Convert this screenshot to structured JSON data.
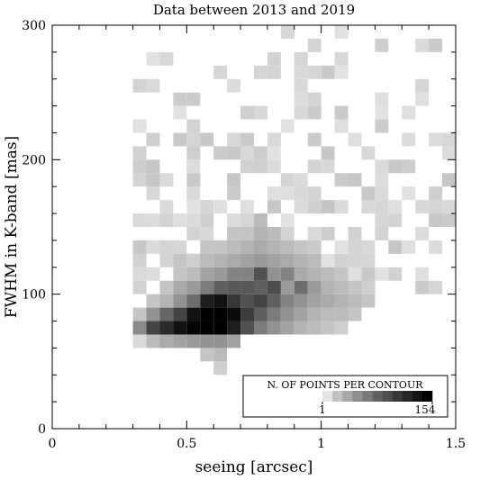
{
  "chart_data": {
    "type": "heatmap",
    "title": "Data between 2013 and 2019",
    "xlabel": "seeing [arcsec]",
    "ylabel": "FWHM in K-band [mas]",
    "xlim": [
      0,
      1.5
    ],
    "ylim": [
      0,
      300
    ],
    "x_ticks": [
      {
        "value": 0,
        "label": "0"
      },
      {
        "value": 0.5,
        "label": "0.5"
      },
      {
        "value": 1,
        "label": "1"
      },
      {
        "value": 1.5,
        "label": "1.5"
      }
    ],
    "y_ticks": [
      {
        "value": 0,
        "label": "0"
      },
      {
        "value": 100,
        "label": "100"
      },
      {
        "value": 200,
        "label": "200"
      },
      {
        "value": 300,
        "label": "300"
      }
    ],
    "bin_width_x": 0.05,
    "bin_width_y": 10,
    "bins": [
      {
        "x": 0.3,
        "y": 60,
        "count": 5
      },
      {
        "x": 0.3,
        "y": 70,
        "count": 50
      },
      {
        "x": 0.3,
        "y": 80,
        "count": 15
      },
      {
        "x": 0.35,
        "y": 60,
        "count": 20
      },
      {
        "x": 0.35,
        "y": 70,
        "count": 100
      },
      {
        "x": 0.35,
        "y": 80,
        "count": 45
      },
      {
        "x": 0.35,
        "y": 90,
        "count": 15
      },
      {
        "x": 0.4,
        "y": 60,
        "count": 30
      },
      {
        "x": 0.4,
        "y": 70,
        "count": 120
      },
      {
        "x": 0.4,
        "y": 80,
        "count": 75
      },
      {
        "x": 0.4,
        "y": 90,
        "count": 25
      },
      {
        "x": 0.4,
        "y": 100,
        "count": 15
      },
      {
        "x": 0.45,
        "y": 60,
        "count": 35
      },
      {
        "x": 0.45,
        "y": 70,
        "count": 140
      },
      {
        "x": 0.45,
        "y": 80,
        "count": 100
      },
      {
        "x": 0.45,
        "y": 90,
        "count": 45
      },
      {
        "x": 0.45,
        "y": 100,
        "count": 30
      },
      {
        "x": 0.45,
        "y": 110,
        "count": 15
      },
      {
        "x": 0.5,
        "y": 60,
        "count": 40
      },
      {
        "x": 0.5,
        "y": 70,
        "count": 150
      },
      {
        "x": 0.5,
        "y": 80,
        "count": 140
      },
      {
        "x": 0.5,
        "y": 90,
        "count": 70
      },
      {
        "x": 0.5,
        "y": 100,
        "count": 40
      },
      {
        "x": 0.5,
        "y": 110,
        "count": 20
      },
      {
        "x": 0.5,
        "y": 120,
        "count": 10
      },
      {
        "x": 0.55,
        "y": 50,
        "count": 15
      },
      {
        "x": 0.55,
        "y": 60,
        "count": 45
      },
      {
        "x": 0.55,
        "y": 70,
        "count": 154
      },
      {
        "x": 0.55,
        "y": 80,
        "count": 154
      },
      {
        "x": 0.55,
        "y": 90,
        "count": 130
      },
      {
        "x": 0.55,
        "y": 100,
        "count": 60
      },
      {
        "x": 0.55,
        "y": 110,
        "count": 35
      },
      {
        "x": 0.55,
        "y": 120,
        "count": 20
      },
      {
        "x": 0.55,
        "y": 130,
        "count": 15
      },
      {
        "x": 0.6,
        "y": 40,
        "count": 10
      },
      {
        "x": 0.6,
        "y": 50,
        "count": 20
      },
      {
        "x": 0.6,
        "y": 60,
        "count": 45
      },
      {
        "x": 0.6,
        "y": 70,
        "count": 154
      },
      {
        "x": 0.6,
        "y": 80,
        "count": 154
      },
      {
        "x": 0.6,
        "y": 90,
        "count": 140
      },
      {
        "x": 0.6,
        "y": 100,
        "count": 80
      },
      {
        "x": 0.6,
        "y": 110,
        "count": 40
      },
      {
        "x": 0.6,
        "y": 120,
        "count": 25
      },
      {
        "x": 0.6,
        "y": 130,
        "count": 15
      },
      {
        "x": 0.65,
        "y": 60,
        "count": 35
      },
      {
        "x": 0.65,
        "y": 70,
        "count": 130
      },
      {
        "x": 0.65,
        "y": 80,
        "count": 145
      },
      {
        "x": 0.65,
        "y": 90,
        "count": 110
      },
      {
        "x": 0.65,
        "y": 100,
        "count": 85
      },
      {
        "x": 0.65,
        "y": 110,
        "count": 55
      },
      {
        "x": 0.65,
        "y": 120,
        "count": 30
      },
      {
        "x": 0.65,
        "y": 130,
        "count": 20
      },
      {
        "x": 0.65,
        "y": 140,
        "count": 15
      },
      {
        "x": 0.7,
        "y": 70,
        "count": 90
      },
      {
        "x": 0.7,
        "y": 80,
        "count": 105
      },
      {
        "x": 0.7,
        "y": 90,
        "count": 90
      },
      {
        "x": 0.7,
        "y": 100,
        "count": 85
      },
      {
        "x": 0.7,
        "y": 110,
        "count": 55
      },
      {
        "x": 0.7,
        "y": 120,
        "count": 35
      },
      {
        "x": 0.7,
        "y": 130,
        "count": 25
      },
      {
        "x": 0.7,
        "y": 140,
        "count": 15
      },
      {
        "x": 0.75,
        "y": 70,
        "count": 60
      },
      {
        "x": 0.75,
        "y": 80,
        "count": 80
      },
      {
        "x": 0.75,
        "y": 90,
        "count": 100
      },
      {
        "x": 0.75,
        "y": 100,
        "count": 80
      },
      {
        "x": 0.75,
        "y": 110,
        "count": 90
      },
      {
        "x": 0.75,
        "y": 120,
        "count": 40
      },
      {
        "x": 0.75,
        "y": 130,
        "count": 30
      },
      {
        "x": 0.75,
        "y": 140,
        "count": 25
      },
      {
        "x": 0.75,
        "y": 150,
        "count": 20
      },
      {
        "x": 0.8,
        "y": 70,
        "count": 45
      },
      {
        "x": 0.8,
        "y": 80,
        "count": 60
      },
      {
        "x": 0.8,
        "y": 90,
        "count": 80
      },
      {
        "x": 0.8,
        "y": 100,
        "count": 95
      },
      {
        "x": 0.8,
        "y": 110,
        "count": 45
      },
      {
        "x": 0.8,
        "y": 120,
        "count": 35
      },
      {
        "x": 0.8,
        "y": 130,
        "count": 25
      },
      {
        "x": 0.8,
        "y": 140,
        "count": 20
      },
      {
        "x": 0.85,
        "y": 70,
        "count": 35
      },
      {
        "x": 0.85,
        "y": 80,
        "count": 45
      },
      {
        "x": 0.85,
        "y": 90,
        "count": 55
      },
      {
        "x": 0.85,
        "y": 100,
        "count": 40
      },
      {
        "x": 0.85,
        "y": 110,
        "count": 55
      },
      {
        "x": 0.85,
        "y": 120,
        "count": 30
      },
      {
        "x": 0.85,
        "y": 130,
        "count": 20
      },
      {
        "x": 0.9,
        "y": 70,
        "count": 25
      },
      {
        "x": 0.9,
        "y": 80,
        "count": 35
      },
      {
        "x": 0.9,
        "y": 90,
        "count": 45
      },
      {
        "x": 0.9,
        "y": 100,
        "count": 70
      },
      {
        "x": 0.9,
        "y": 110,
        "count": 30
      },
      {
        "x": 0.9,
        "y": 120,
        "count": 25
      },
      {
        "x": 0.9,
        "y": 130,
        "count": 15
      },
      {
        "x": 0.95,
        "y": 70,
        "count": 20
      },
      {
        "x": 0.95,
        "y": 80,
        "count": 25
      },
      {
        "x": 0.95,
        "y": 90,
        "count": 35
      },
      {
        "x": 0.95,
        "y": 100,
        "count": 40
      },
      {
        "x": 0.95,
        "y": 110,
        "count": 25
      },
      {
        "x": 0.95,
        "y": 120,
        "count": 20
      },
      {
        "x": 1.0,
        "y": 70,
        "count": 15
      },
      {
        "x": 1.0,
        "y": 80,
        "count": 20
      },
      {
        "x": 1.0,
        "y": 90,
        "count": 30
      },
      {
        "x": 1.0,
        "y": 100,
        "count": 25
      },
      {
        "x": 1.0,
        "y": 110,
        "count": 20
      },
      {
        "x": 1.05,
        "y": 70,
        "count": 10
      },
      {
        "x": 1.05,
        "y": 80,
        "count": 20
      },
      {
        "x": 1.05,
        "y": 90,
        "count": 25
      },
      {
        "x": 1.05,
        "y": 100,
        "count": 20
      },
      {
        "x": 1.05,
        "y": 110,
        "count": 15
      },
      {
        "x": 1.1,
        "y": 80,
        "count": 15
      },
      {
        "x": 1.1,
        "y": 90,
        "count": 20
      },
      {
        "x": 1.1,
        "y": 100,
        "count": 15
      },
      {
        "x": 1.15,
        "y": 90,
        "count": 15
      },
      {
        "x": 1.15,
        "y": 100,
        "count": 10
      }
    ],
    "sparse_region": {
      "x_range": [
        0.3,
        1.5
      ],
      "y_range": [
        100,
        300
      ],
      "density": "light scatter of low-count bins"
    },
    "legend": {
      "title": "N. OF POINTS PER CONTOUR",
      "min_label": "1",
      "max_label": "154",
      "levels": 11,
      "placement": "bottom-right"
    },
    "colors": {
      "low": "#e9e9e9",
      "high": "#000000",
      "axis": "#000000",
      "background": "#ffffff"
    }
  }
}
